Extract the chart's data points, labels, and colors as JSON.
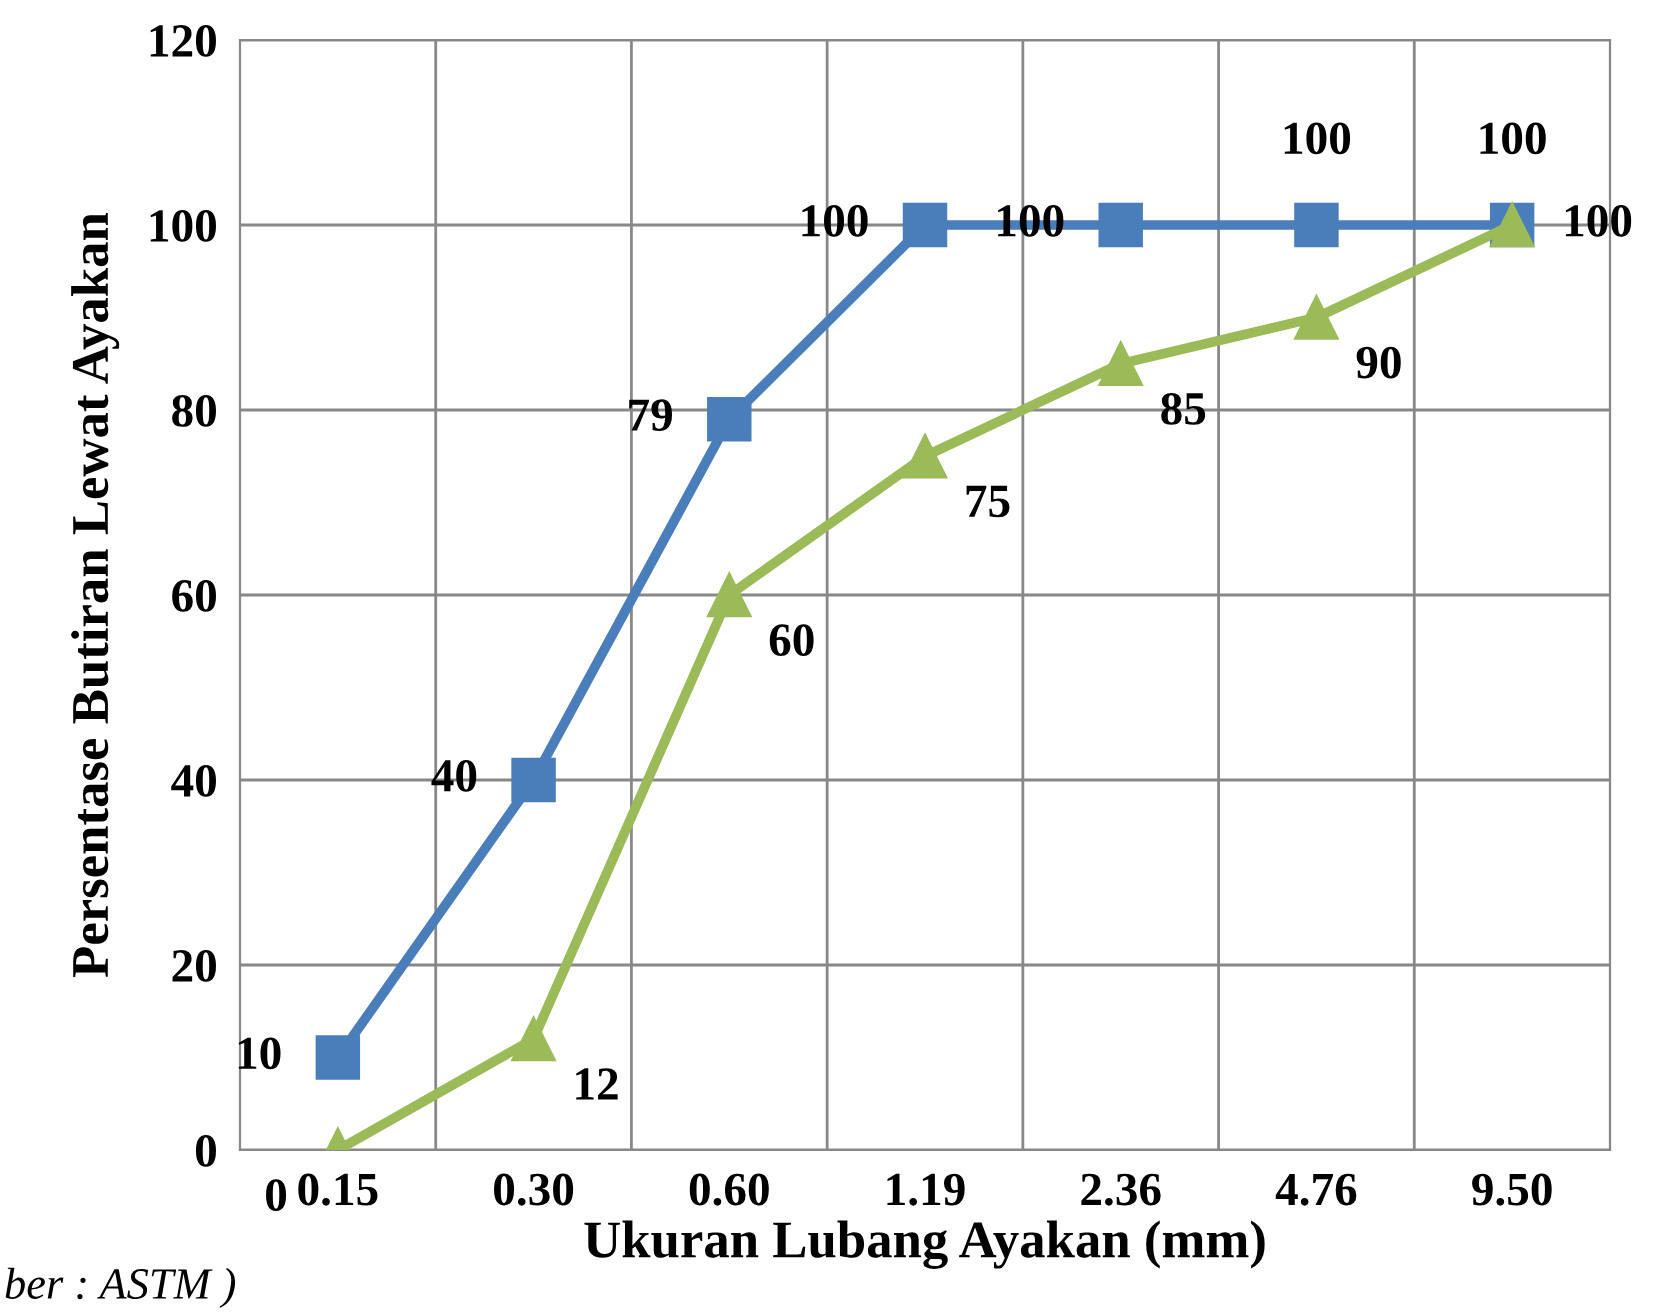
{
  "chart_data": {
    "type": "line",
    "xlabel": "Ukuran Lubang Ayakan (mm)",
    "ylabel": "Persentase Butiran Lewat Ayakan",
    "categories": [
      "0.15",
      "0.30",
      "0.60",
      "1.19",
      "2.36",
      "4.76",
      "9.50"
    ],
    "series": [
      {
        "color": "#4a7ebb",
        "marker": "square",
        "values": [
          10,
          40,
          79,
          100,
          100,
          100,
          100
        ]
      },
      {
        "color": "#9bbb59",
        "marker": "triangle",
        "values": [
          0,
          12,
          60,
          75,
          85,
          90,
          100
        ]
      }
    ],
    "ylim": [
      0,
      120
    ],
    "yticks": [
      0,
      20,
      40,
      60,
      80,
      100,
      120
    ],
    "grid": true,
    "data_labels": true,
    "legend": false,
    "annotations": [
      "ber : ASTM )"
    ]
  }
}
